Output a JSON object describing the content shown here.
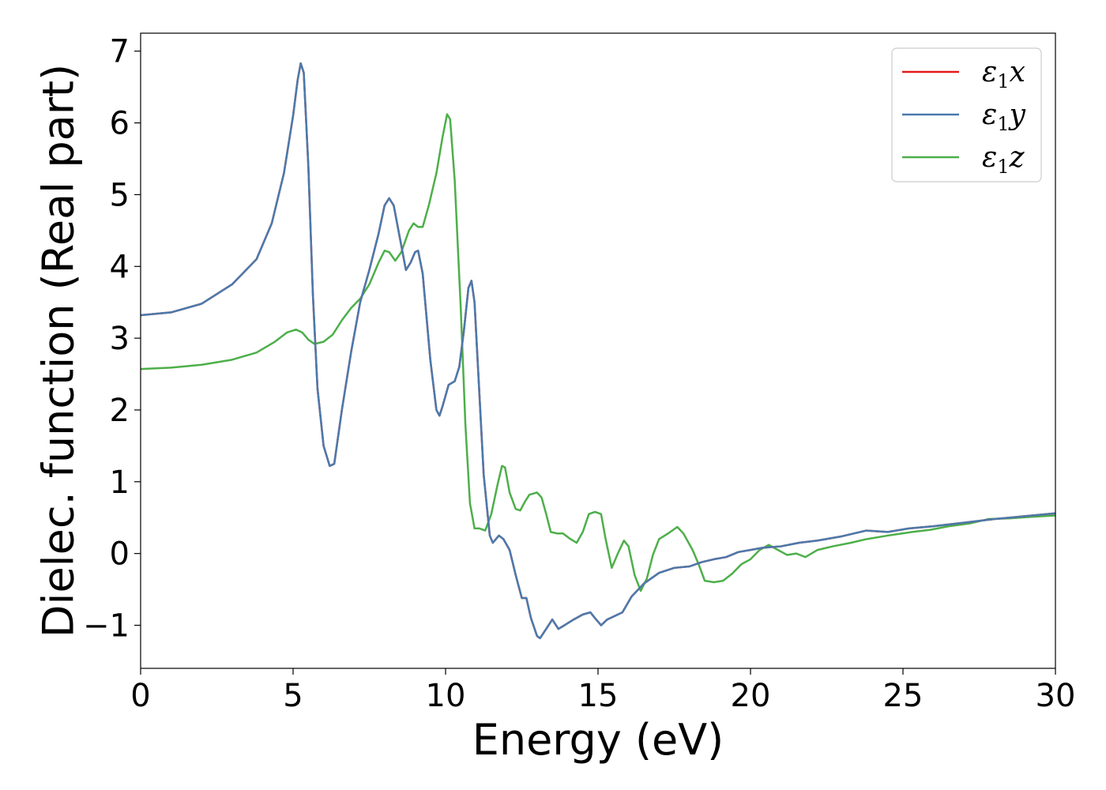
{
  "chart_data": {
    "type": "line",
    "xlabel": "Energy (eV)",
    "ylabel": "Dielec. function (Real part)",
    "xlim": [
      0,
      30
    ],
    "ylim": [
      -1.6,
      7.25
    ],
    "xticks": [
      0,
      5,
      10,
      15,
      20,
      25,
      30
    ],
    "xtick_labels": [
      "0",
      "5",
      "10",
      "15",
      "20",
      "25",
      "30"
    ],
    "yticks": [
      -1,
      0,
      1,
      2,
      3,
      4,
      5,
      6,
      7
    ],
    "ytick_labels": [
      "−1",
      "0",
      "1",
      "2",
      "3",
      "4",
      "5",
      "6",
      "7"
    ],
    "grid": false,
    "legend_position": "top-right",
    "series": [
      {
        "name": "ε₁x",
        "legend_base": "ε",
        "legend_sub": "1",
        "legend_var": "x",
        "color": "#e41a1c",
        "points": [
          [
            0,
            3.32
          ],
          [
            1,
            3.36
          ],
          [
            2,
            3.48
          ],
          [
            3,
            3.75
          ],
          [
            3.8,
            4.1
          ],
          [
            4.3,
            4.6
          ],
          [
            4.7,
            5.3
          ],
          [
            5.0,
            6.1
          ],
          [
            5.15,
            6.6
          ],
          [
            5.25,
            6.83
          ],
          [
            5.35,
            6.7
          ],
          [
            5.5,
            5.4
          ],
          [
            5.65,
            3.6
          ],
          [
            5.8,
            2.3
          ],
          [
            6.0,
            1.5
          ],
          [
            6.2,
            1.22
          ],
          [
            6.35,
            1.25
          ],
          [
            6.6,
            2.0
          ],
          [
            6.9,
            2.8
          ],
          [
            7.2,
            3.5
          ],
          [
            7.5,
            3.95
          ],
          [
            7.8,
            4.45
          ],
          [
            8.0,
            4.85
          ],
          [
            8.15,
            4.95
          ],
          [
            8.3,
            4.85
          ],
          [
            8.5,
            4.4
          ],
          [
            8.7,
            3.95
          ],
          [
            8.85,
            4.05
          ],
          [
            9.0,
            4.2
          ],
          [
            9.1,
            4.22
          ],
          [
            9.25,
            3.9
          ],
          [
            9.5,
            2.7
          ],
          [
            9.7,
            2.0
          ],
          [
            9.8,
            1.92
          ],
          [
            9.9,
            2.05
          ],
          [
            10.1,
            2.35
          ],
          [
            10.3,
            2.4
          ],
          [
            10.45,
            2.6
          ],
          [
            10.6,
            3.1
          ],
          [
            10.75,
            3.7
          ],
          [
            10.85,
            3.8
          ],
          [
            10.95,
            3.5
          ],
          [
            11.1,
            2.3
          ],
          [
            11.25,
            1.1
          ],
          [
            11.45,
            0.25
          ],
          [
            11.55,
            0.15
          ],
          [
            11.75,
            0.25
          ],
          [
            11.9,
            0.2
          ],
          [
            12.1,
            0.05
          ],
          [
            12.3,
            -0.3
          ],
          [
            12.5,
            -0.62
          ],
          [
            12.65,
            -0.62
          ],
          [
            12.8,
            -0.9
          ],
          [
            13.0,
            -1.15
          ],
          [
            13.1,
            -1.18
          ],
          [
            13.3,
            -1.05
          ],
          [
            13.5,
            -0.92
          ],
          [
            13.7,
            -1.05
          ],
          [
            13.9,
            -1.0
          ],
          [
            14.2,
            -0.92
          ],
          [
            14.5,
            -0.85
          ],
          [
            14.75,
            -0.82
          ],
          [
            14.9,
            -0.9
          ],
          [
            15.1,
            -1.0
          ],
          [
            15.3,
            -0.92
          ],
          [
            15.5,
            -0.88
          ],
          [
            15.8,
            -0.82
          ],
          [
            16.1,
            -0.6
          ],
          [
            16.5,
            -0.42
          ],
          [
            17.0,
            -0.27
          ],
          [
            17.5,
            -0.2
          ],
          [
            18.0,
            -0.18
          ],
          [
            18.4,
            -0.12
          ],
          [
            18.8,
            -0.08
          ],
          [
            19.2,
            -0.05
          ],
          [
            19.6,
            0.02
          ],
          [
            20.0,
            0.05
          ],
          [
            20.4,
            0.08
          ],
          [
            21.0,
            0.1
          ],
          [
            21.6,
            0.15
          ],
          [
            22.2,
            0.18
          ],
          [
            23.0,
            0.24
          ],
          [
            23.8,
            0.32
          ],
          [
            24.5,
            0.3
          ],
          [
            25.2,
            0.35
          ],
          [
            26.0,
            0.38
          ],
          [
            27.0,
            0.43
          ],
          [
            28.0,
            0.48
          ],
          [
            29.0,
            0.52
          ],
          [
            30.0,
            0.56
          ]
        ]
      },
      {
        "name": "ε₁y",
        "legend_base": "ε",
        "legend_sub": "1",
        "legend_var": "y",
        "color": "#4a7aac",
        "points": [
          [
            0,
            3.32
          ],
          [
            1,
            3.36
          ],
          [
            2,
            3.48
          ],
          [
            3,
            3.75
          ],
          [
            3.8,
            4.1
          ],
          [
            4.3,
            4.6
          ],
          [
            4.7,
            5.3
          ],
          [
            5.0,
            6.1
          ],
          [
            5.15,
            6.6
          ],
          [
            5.25,
            6.83
          ],
          [
            5.35,
            6.7
          ],
          [
            5.5,
            5.4
          ],
          [
            5.65,
            3.6
          ],
          [
            5.8,
            2.3
          ],
          [
            6.0,
            1.5
          ],
          [
            6.2,
            1.22
          ],
          [
            6.35,
            1.25
          ],
          [
            6.6,
            2.0
          ],
          [
            6.9,
            2.8
          ],
          [
            7.2,
            3.5
          ],
          [
            7.5,
            3.95
          ],
          [
            7.8,
            4.45
          ],
          [
            8.0,
            4.85
          ],
          [
            8.15,
            4.95
          ],
          [
            8.3,
            4.85
          ],
          [
            8.5,
            4.4
          ],
          [
            8.7,
            3.95
          ],
          [
            8.85,
            4.05
          ],
          [
            9.0,
            4.2
          ],
          [
            9.1,
            4.22
          ],
          [
            9.25,
            3.9
          ],
          [
            9.5,
            2.7
          ],
          [
            9.7,
            2.0
          ],
          [
            9.8,
            1.92
          ],
          [
            9.9,
            2.05
          ],
          [
            10.1,
            2.35
          ],
          [
            10.3,
            2.4
          ],
          [
            10.45,
            2.6
          ],
          [
            10.6,
            3.1
          ],
          [
            10.75,
            3.7
          ],
          [
            10.85,
            3.8
          ],
          [
            10.95,
            3.5
          ],
          [
            11.1,
            2.3
          ],
          [
            11.25,
            1.1
          ],
          [
            11.45,
            0.25
          ],
          [
            11.55,
            0.15
          ],
          [
            11.75,
            0.25
          ],
          [
            11.9,
            0.2
          ],
          [
            12.1,
            0.05
          ],
          [
            12.3,
            -0.3
          ],
          [
            12.5,
            -0.62
          ],
          [
            12.65,
            -0.62
          ],
          [
            12.8,
            -0.9
          ],
          [
            13.0,
            -1.15
          ],
          [
            13.1,
            -1.18
          ],
          [
            13.3,
            -1.05
          ],
          [
            13.5,
            -0.92
          ],
          [
            13.7,
            -1.05
          ],
          [
            13.9,
            -1.0
          ],
          [
            14.2,
            -0.92
          ],
          [
            14.5,
            -0.85
          ],
          [
            14.75,
            -0.82
          ],
          [
            14.9,
            -0.9
          ],
          [
            15.1,
            -1.0
          ],
          [
            15.3,
            -0.92
          ],
          [
            15.5,
            -0.88
          ],
          [
            15.8,
            -0.82
          ],
          [
            16.1,
            -0.6
          ],
          [
            16.5,
            -0.42
          ],
          [
            17.0,
            -0.27
          ],
          [
            17.5,
            -0.2
          ],
          [
            18.0,
            -0.18
          ],
          [
            18.4,
            -0.12
          ],
          [
            18.8,
            -0.08
          ],
          [
            19.2,
            -0.05
          ],
          [
            19.6,
            0.02
          ],
          [
            20.0,
            0.05
          ],
          [
            20.4,
            0.08
          ],
          [
            21.0,
            0.1
          ],
          [
            21.6,
            0.15
          ],
          [
            22.2,
            0.18
          ],
          [
            23.0,
            0.24
          ],
          [
            23.8,
            0.32
          ],
          [
            24.5,
            0.3
          ],
          [
            25.2,
            0.35
          ],
          [
            26.0,
            0.38
          ],
          [
            27.0,
            0.43
          ],
          [
            28.0,
            0.48
          ],
          [
            29.0,
            0.52
          ],
          [
            30.0,
            0.56
          ]
        ]
      },
      {
        "name": "ε₁z",
        "legend_base": "ε",
        "legend_sub": "1",
        "legend_var": "z",
        "color": "#4daf4a",
        "points": [
          [
            0,
            2.57
          ],
          [
            1,
            2.59
          ],
          [
            2,
            2.63
          ],
          [
            3,
            2.7
          ],
          [
            3.8,
            2.8
          ],
          [
            4.4,
            2.95
          ],
          [
            4.8,
            3.08
          ],
          [
            5.1,
            3.12
          ],
          [
            5.3,
            3.08
          ],
          [
            5.5,
            2.98
          ],
          [
            5.7,
            2.92
          ],
          [
            6.0,
            2.95
          ],
          [
            6.3,
            3.05
          ],
          [
            6.6,
            3.25
          ],
          [
            6.9,
            3.42
          ],
          [
            7.2,
            3.55
          ],
          [
            7.5,
            3.75
          ],
          [
            7.8,
            4.05
          ],
          [
            8.0,
            4.22
          ],
          [
            8.15,
            4.2
          ],
          [
            8.35,
            4.08
          ],
          [
            8.55,
            4.2
          ],
          [
            8.8,
            4.5
          ],
          [
            8.95,
            4.6
          ],
          [
            9.1,
            4.55
          ],
          [
            9.25,
            4.55
          ],
          [
            9.45,
            4.85
          ],
          [
            9.7,
            5.3
          ],
          [
            9.9,
            5.8
          ],
          [
            10.05,
            6.12
          ],
          [
            10.15,
            6.05
          ],
          [
            10.3,
            5.2
          ],
          [
            10.5,
            3.4
          ],
          [
            10.65,
            1.8
          ],
          [
            10.8,
            0.7
          ],
          [
            10.95,
            0.35
          ],
          [
            11.1,
            0.35
          ],
          [
            11.3,
            0.32
          ],
          [
            11.5,
            0.55
          ],
          [
            11.7,
            0.95
          ],
          [
            11.85,
            1.22
          ],
          [
            11.95,
            1.2
          ],
          [
            12.1,
            0.85
          ],
          [
            12.3,
            0.62
          ],
          [
            12.45,
            0.6
          ],
          [
            12.6,
            0.72
          ],
          [
            12.75,
            0.82
          ],
          [
            13.0,
            0.85
          ],
          [
            13.15,
            0.78
          ],
          [
            13.3,
            0.55
          ],
          [
            13.45,
            0.3
          ],
          [
            13.65,
            0.28
          ],
          [
            13.85,
            0.28
          ],
          [
            14.1,
            0.2
          ],
          [
            14.3,
            0.15
          ],
          [
            14.5,
            0.3
          ],
          [
            14.7,
            0.55
          ],
          [
            14.9,
            0.58
          ],
          [
            15.1,
            0.55
          ],
          [
            15.25,
            0.2
          ],
          [
            15.45,
            -0.2
          ],
          [
            15.65,
            0.0
          ],
          [
            15.85,
            0.18
          ],
          [
            16.0,
            0.1
          ],
          [
            16.2,
            -0.3
          ],
          [
            16.4,
            -0.52
          ],
          [
            16.6,
            -0.35
          ],
          [
            16.8,
            -0.02
          ],
          [
            17.0,
            0.2
          ],
          [
            17.3,
            0.28
          ],
          [
            17.6,
            0.37
          ],
          [
            17.8,
            0.28
          ],
          [
            18.1,
            0.05
          ],
          [
            18.3,
            -0.15
          ],
          [
            18.5,
            -0.38
          ],
          [
            18.8,
            -0.4
          ],
          [
            19.1,
            -0.38
          ],
          [
            19.4,
            -0.28
          ],
          [
            19.7,
            -0.15
          ],
          [
            20.0,
            -0.08
          ],
          [
            20.3,
            0.05
          ],
          [
            20.6,
            0.12
          ],
          [
            20.9,
            0.05
          ],
          [
            21.2,
            -0.02
          ],
          [
            21.5,
            0.0
          ],
          [
            21.8,
            -0.05
          ],
          [
            22.2,
            0.05
          ],
          [
            22.7,
            0.1
          ],
          [
            23.3,
            0.15
          ],
          [
            23.8,
            0.2
          ],
          [
            24.5,
            0.25
          ],
          [
            25.3,
            0.3
          ],
          [
            25.9,
            0.33
          ],
          [
            26.5,
            0.38
          ],
          [
            27.2,
            0.42
          ],
          [
            27.8,
            0.48
          ],
          [
            28.5,
            0.49
          ],
          [
            29.2,
            0.51
          ],
          [
            30.0,
            0.53
          ]
        ]
      }
    ]
  }
}
